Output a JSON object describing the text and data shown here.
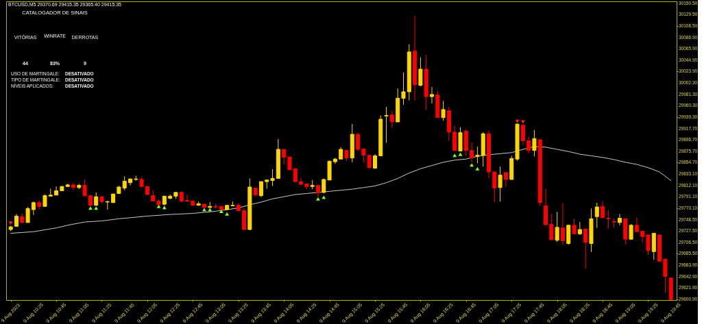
{
  "chart_data": {
    "type": "candlestick",
    "title": "BTCUSD,M5 29370.69 29415.35 29365.40 29415.35",
    "annotations": [
      "CATALOGADOR DE SINAIS",
      "VITÓRIAS",
      "WINRATE",
      "DERROTAS",
      "44",
      "83%",
      "9",
      "USO DE MARTINGALE:",
      "DESATIVADO",
      "TIPO DE MARTINGALE:",
      "DESATIVADO",
      "NÍVEIS APLICADOS:",
      "DESATIVADO"
    ],
    "x": [
      "2023-08-09T10:05",
      "2023-08-09T10:10",
      "2023-08-09T10:15",
      "2023-08-09T10:20",
      "2023-08-09T10:25",
      "2023-08-09T10:30",
      "2023-08-09T10:35",
      "2023-08-09T10:40",
      "2023-08-09T10:45",
      "2023-08-09T10:50",
      "2023-08-09T10:55",
      "2023-08-09T11:00",
      "2023-08-09T11:05",
      "2023-08-09T11:10",
      "2023-08-09T11:15",
      "2023-08-09T11:20",
      "2023-08-09T11:25",
      "2023-08-09T11:30",
      "2023-08-09T11:35",
      "2023-08-09T11:40",
      "2023-08-09T11:45",
      "2023-08-09T11:50",
      "2023-08-09T11:55",
      "2023-08-09T12:00",
      "2023-08-09T12:05",
      "2023-08-09T12:10",
      "2023-08-09T12:15",
      "2023-08-09T12:20",
      "2023-08-09T12:25",
      "2023-08-09T12:30",
      "2023-08-09T12:35",
      "2023-08-09T12:40",
      "2023-08-09T12:45",
      "2023-08-09T12:50",
      "2023-08-09T12:55",
      "2023-08-09T13:00",
      "2023-08-09T13:05",
      "2023-08-09T13:10",
      "2023-08-09T13:15",
      "2023-08-09T13:20",
      "2023-08-09T13:25",
      "2023-08-09T13:30",
      "2023-08-09T13:35",
      "2023-08-09T13:40",
      "2023-08-09T13:45",
      "2023-08-09T13:50",
      "2023-08-09T13:55",
      "2023-08-09T14:00",
      "2023-08-09T14:05",
      "2023-08-09T14:10",
      "2023-08-09T14:15",
      "2023-08-09T14:20",
      "2023-08-09T14:25",
      "2023-08-09T14:30",
      "2023-08-09T14:35",
      "2023-08-09T14:40",
      "2023-08-09T14:45",
      "2023-08-09T14:50",
      "2023-08-09T14:55",
      "2023-08-09T15:00",
      "2023-08-09T15:05",
      "2023-08-09T15:10",
      "2023-08-09T15:15",
      "2023-08-09T15:20",
      "2023-08-09T15:25",
      "2023-08-09T15:30",
      "2023-08-09T15:35",
      "2023-08-09T15:40",
      "2023-08-09T15:45",
      "2023-08-09T15:50",
      "2023-08-09T15:55",
      "2023-08-09T16:00",
      "2023-08-09T16:05",
      "2023-08-09T16:10",
      "2023-08-09T16:15",
      "2023-08-09T16:20",
      "2023-08-09T16:25",
      "2023-08-09T16:30",
      "2023-08-09T16:35",
      "2023-08-09T16:40",
      "2023-08-09T16:45",
      "2023-08-09T16:50",
      "2023-08-09T16:55",
      "2023-08-09T17:00",
      "2023-08-09T17:05",
      "2023-08-09T17:10",
      "2023-08-09T17:15",
      "2023-08-09T17:20",
      "2023-08-09T17:25",
      "2023-08-09T17:30",
      "2023-08-09T17:35",
      "2023-08-09T17:40",
      "2023-08-09T17:45",
      "2023-08-09T17:50",
      "2023-08-09T17:55",
      "2023-08-09T18:00",
      "2023-08-09T18:05",
      "2023-08-09T18:10",
      "2023-08-09T18:15",
      "2023-08-09T18:20",
      "2023-08-09T18:25",
      "2023-08-09T18:30",
      "2023-08-09T18:35",
      "2023-08-09T18:40",
      "2023-08-09T18:45",
      "2023-08-09T18:50",
      "2023-08-09T18:55",
      "2023-08-09T19:00",
      "2023-08-09T19:05",
      "2023-08-09T19:10",
      "2023-08-09T19:15",
      "2023-08-09T19:20",
      "2023-08-09T19:25",
      "2023-08-09T19:30",
      "2023-08-09T19:35",
      "2023-08-09T19:40",
      "2023-08-09T19:45"
    ],
    "ohlc": [
      [
        29730,
        29737,
        29727,
        29735
      ],
      [
        29736,
        29759,
        29735,
        29755
      ],
      [
        29754,
        29760,
        29743,
        29743
      ],
      [
        29743,
        29772,
        29743,
        29769
      ],
      [
        29767,
        29782,
        29757,
        29780
      ],
      [
        29780,
        29784,
        29767,
        29773
      ],
      [
        29773,
        29795,
        29773,
        29793
      ],
      [
        29792,
        29806,
        29792,
        29794
      ],
      [
        29794,
        29810,
        29794,
        29802
      ],
      [
        29802,
        29811,
        29802,
        29810
      ],
      [
        29810,
        29815,
        29809,
        29813
      ],
      [
        29813,
        29817,
        29803,
        29808
      ],
      [
        29808,
        29815,
        29805,
        29812
      ],
      [
        29812,
        29823,
        29791,
        29793
      ],
      [
        29793,
        29793,
        29773,
        29775
      ],
      [
        29775,
        29799,
        29774,
        29791
      ],
      [
        29791,
        29791,
        29778,
        29782
      ],
      [
        29781,
        29783,
        29767,
        29782
      ],
      [
        29780,
        29797,
        29780,
        29796
      ],
      [
        29797,
        29811,
        29796,
        29809
      ],
      [
        29807,
        29829,
        29803,
        29820
      ],
      [
        29817,
        29825,
        29812,
        29824
      ],
      [
        29823,
        29830,
        29821,
        29824
      ],
      [
        29823,
        29827,
        29810,
        29810
      ],
      [
        29810,
        29811,
        29795,
        29795
      ],
      [
        29793,
        29803,
        29783,
        29783
      ],
      [
        29783,
        29786,
        29776,
        29776
      ],
      [
        29777,
        29793,
        29775,
        29792
      ],
      [
        29788,
        29795,
        29786,
        29792
      ],
      [
        29792,
        29800,
        29787,
        29799
      ],
      [
        29799,
        29801,
        29780,
        29783
      ],
      [
        29784,
        29795,
        29781,
        29783
      ],
      [
        29783,
        29783,
        29775,
        29775
      ],
      [
        29775,
        29782,
        29775,
        29778
      ],
      [
        29777,
        29778,
        29770,
        29771
      ],
      [
        29771,
        29781,
        29770,
        29773
      ],
      [
        29773,
        29777,
        29769,
        29772
      ],
      [
        29773,
        29774,
        29767,
        29767
      ],
      [
        29767,
        29776,
        29766,
        29775
      ],
      [
        29774,
        29782,
        29773,
        29775
      ],
      [
        29775,
        29779,
        29765,
        29765
      ],
      [
        29765,
        29770,
        29730,
        29730
      ],
      [
        29730,
        29825,
        29729,
        29809
      ],
      [
        29807,
        29807,
        29794,
        29794
      ],
      [
        29793,
        29820,
        29790,
        29819
      ],
      [
        29819,
        29823,
        29806,
        29822
      ],
      [
        29821,
        29842,
        29811,
        29825
      ],
      [
        29825,
        29898,
        29825,
        29879
      ],
      [
        29879,
        29879,
        29851,
        29864
      ],
      [
        29865,
        29865,
        29841,
        29841
      ],
      [
        29843,
        29843,
        29819,
        29819
      ],
      [
        29819,
        29826,
        29813,
        29814
      ],
      [
        29815,
        29815,
        29805,
        29810
      ],
      [
        29810,
        29822,
        29805,
        29812
      ],
      [
        29812,
        29812,
        29791,
        29798
      ],
      [
        29799,
        29825,
        29797,
        29823
      ],
      [
        29822,
        29858,
        29822,
        29857
      ],
      [
        29856,
        29863,
        29852,
        29861
      ],
      [
        29861,
        29883,
        29861,
        29879
      ],
      [
        29877,
        29877,
        29858,
        29863
      ],
      [
        29863,
        29926,
        29855,
        29907
      ],
      [
        29907,
        29910,
        29875,
        29879
      ],
      [
        29880,
        29880,
        29855,
        29868
      ],
      [
        29868,
        29868,
        29844,
        29845
      ],
      [
        29844,
        29870,
        29843,
        29867
      ],
      [
        29867,
        29942,
        29867,
        29935
      ],
      [
        29941,
        29958,
        29891,
        29942
      ],
      [
        29943,
        29950,
        29919,
        29930
      ],
      [
        29930,
        29992,
        29930,
        29974
      ],
      [
        29974,
        30022,
        29962,
        29986
      ],
      [
        29986,
        30074,
        29970,
        30060
      ],
      [
        30062,
        30127,
        29970,
        29999
      ],
      [
        29998,
        30050,
        29996,
        30028
      ],
      [
        30028,
        30054,
        29952,
        29977
      ],
      [
        29977,
        29995,
        29964,
        29981
      ],
      [
        29980,
        29988,
        29938,
        29938
      ],
      [
        29938,
        29969,
        29932,
        29953
      ],
      [
        29951,
        29958,
        29895,
        29911
      ],
      [
        29911,
        29923,
        29877,
        29877
      ],
      [
        29876,
        29920,
        29875,
        29910
      ],
      [
        29913,
        29916,
        29867,
        29877
      ],
      [
        29877,
        29892,
        29855,
        29863
      ],
      [
        29866,
        29884,
        29853,
        29868
      ],
      [
        29868,
        29911,
        29847,
        29908
      ],
      [
        29908,
        29914,
        29825,
        29837
      ],
      [
        29837,
        29837,
        29781,
        29807
      ],
      [
        29808,
        29847,
        29782,
        29831
      ],
      [
        29836,
        29836,
        29809,
        29823
      ],
      [
        29823,
        29867,
        29823,
        29862
      ],
      [
        29861,
        29927,
        29858,
        29926
      ],
      [
        29924,
        29926,
        29887,
        29895
      ],
      [
        29895,
        29903,
        29872,
        29877
      ],
      [
        29877,
        29915,
        29866,
        29899
      ],
      [
        29897,
        29897,
        29774,
        29780
      ],
      [
        29774,
        29805,
        29738,
        29739
      ],
      [
        29740,
        29759,
        29711,
        29711
      ],
      [
        29710,
        29763,
        29707,
        29734
      ],
      [
        29733,
        29779,
        29702,
        29709
      ],
      [
        29704,
        29739,
        29702,
        29738
      ],
      [
        29738,
        29750,
        29722,
        29722
      ],
      [
        29722,
        29744,
        29720,
        29730
      ],
      [
        29731,
        29731,
        29657,
        29706
      ],
      [
        29704,
        29769,
        29688,
        29750
      ],
      [
        29754,
        29780,
        29733,
        29772
      ],
      [
        29773,
        29783,
        29751,
        29752
      ],
      [
        29751,
        29766,
        29732,
        29750
      ],
      [
        29745,
        29750,
        29734,
        29744
      ],
      [
        29743,
        29759,
        29738,
        29751
      ],
      [
        29750,
        29750,
        29702,
        29712
      ],
      [
        29712,
        29740,
        29712,
        29738
      ],
      [
        29738,
        29752,
        29726,
        29726
      ],
      [
        29727,
        29727,
        29706,
        29717
      ],
      [
        29720,
        29720,
        29683,
        29691
      ],
      [
        29689,
        29724,
        29674,
        29723
      ],
      [
        29720,
        29720,
        29671,
        29671
      ],
      [
        29675,
        29675,
        29612,
        29643
      ],
      [
        29640,
        29640,
        29600,
        29600
      ]
    ],
    "colors": [
      "#ffd700",
      "#ffd700",
      "#ff0000",
      "#ffd700",
      "#ffd700",
      "#ff0000",
      "#ffd700",
      "#ffd700",
      "#ffd700",
      "#ffd700",
      "#ffd700",
      "#ff0000",
      "#ffd700",
      "#ff0000",
      "#ff0000",
      "#ffd700",
      "#ff0000",
      "#ffd700",
      "#ffd700",
      "#ffd700",
      "#ffd700",
      "#ffd700",
      "#ffd700",
      "#ff0000",
      "#ff0000",
      "#ff0000",
      "#ff0000",
      "#ffd700",
      "#ffd700",
      "#ffd700",
      "#ff0000",
      "#ff0000",
      "#ff0000",
      "#ffd700",
      "#ff0000",
      "#ffd700",
      "#ff0000",
      "#ff0000",
      "#ffd700",
      "#ffd700",
      "#ff0000",
      "#ff0000",
      "#ffd700",
      "#ff0000",
      "#ffd700",
      "#ffd700",
      "#ffd700",
      "#ffd700",
      "#ff0000",
      "#ff0000",
      "#ff0000",
      "#ff0000",
      "#ff0000",
      "#ffd700",
      "#ff0000",
      "#ffd700",
      "#ffd700",
      "#ffd700",
      "#ffd700",
      "#ff0000",
      "#ffd700",
      "#ff0000",
      "#ff0000",
      "#ff0000",
      "#ffd700",
      "#ffd700",
      "#ffd700",
      "#ff0000",
      "#ffd700",
      "#ffd700",
      "#ffd700",
      "#ff0000",
      "#ffd700",
      "#ff0000",
      "#ffd700",
      "#ff0000",
      "#ffd700",
      "#ff0000",
      "#ff0000",
      "#ffd700",
      "#ff0000",
      "#ff0000",
      "#ffd700",
      "#ffd700",
      "#ff0000",
      "#ff0000",
      "#ffd700",
      "#ff0000",
      "#ffd700",
      "#ffd700",
      "#ff0000",
      "#ff0000",
      "#ffd700",
      "#ff0000",
      "#ff0000",
      "#ff0000",
      "#ffd700",
      "#ff0000",
      "#ffd700",
      "#ff0000",
      "#ffd700",
      "#ff0000",
      "#ffd700",
      "#ffd700",
      "#ff0000",
      "#ff0000",
      "#ff0000",
      "#ffd700",
      "#ff0000",
      "#ffd700",
      "#ff0000",
      "#ff0000",
      "#ff0000",
      "#ffd700",
      "#ff0000",
      "#ff0000",
      "#ff0000"
    ],
    "series": [
      {
        "type": "line",
        "color": "#c8c8c8",
        "x": [
          "2023-08-09T10:05",
          "2023-08-09T10:25",
          "2023-08-09T10:45",
          "2023-08-09T10:55",
          "2023-08-09T11:10",
          "2023-08-09T11:25",
          "2023-08-09T11:40",
          "2023-08-09T12:05",
          "2023-08-09T12:25",
          "2023-08-09T12:45",
          "2023-08-09T13:05",
          "2023-08-09T13:25",
          "2023-08-09T13:35",
          "2023-08-09T13:45",
          "2023-08-09T13:55",
          "2023-08-09T14:05",
          "2023-08-09T14:15",
          "2023-08-09T14:25",
          "2023-08-09T14:35",
          "2023-08-09T14:45",
          "2023-08-09T14:55",
          "2023-08-09T15:05",
          "2023-08-09T15:15",
          "2023-08-09T15:25",
          "2023-08-09T15:35",
          "2023-08-09T15:45",
          "2023-08-09T15:55",
          "2023-08-09T16:05",
          "2023-08-09T16:15",
          "2023-08-09T16:25",
          "2023-08-09T16:35",
          "2023-08-09T16:45",
          "2023-08-09T16:55",
          "2023-08-09T17:05",
          "2023-08-09T17:15",
          "2023-08-09T17:25",
          "2023-08-09T17:35",
          "2023-08-09T17:45",
          "2023-08-09T17:55",
          "2023-08-09T18:05",
          "2023-08-09T18:15",
          "2023-08-09T18:25",
          "2023-08-09T18:35",
          "2023-08-09T18:45",
          "2023-08-09T18:55",
          "2023-08-09T19:05",
          "2023-08-09T19:15",
          "2023-08-09T19:25",
          "2023-08-09T19:35",
          "2023-08-09T19:45"
        ],
        "values": [
          29723,
          29726,
          29733,
          29738,
          29744,
          29746,
          29750,
          29755,
          29758,
          29760,
          29764,
          29770,
          29776,
          29781,
          29787,
          29791,
          29795,
          29797,
          29799,
          29801,
          29803,
          29805,
          29808,
          29811,
          29817,
          29825,
          29835,
          29843,
          29849,
          29855,
          29859,
          29861,
          29866,
          29869,
          29871,
          29873,
          29879,
          29884,
          29883,
          29879,
          29875,
          29870,
          29867,
          29864,
          29860,
          29855,
          29851,
          29845,
          29837,
          29821
        ]
      },
      {
        "type": "scatter",
        "color": "#80ff20",
        "marker": "triangle",
        "x": [
          "2023-08-09T11:15",
          "2023-08-09T11:20",
          "2023-08-09T12:15",
          "2023-08-09T12:20",
          "2023-08-09T12:55",
          "2023-08-09T13:00",
          "2023-08-09T13:10",
          "2023-08-09T13:15",
          "2023-08-09T14:35",
          "2023-08-09T14:40",
          "2023-08-09T16:35",
          "2023-08-09T16:40",
          "2023-08-09T16:50",
          "2023-08-09T16:55"
        ],
        "values": [
          29770,
          29770,
          29773,
          29771,
          29767,
          29767,
          29764,
          29759,
          29787,
          29790,
          29868,
          29870,
          29850,
          29843
        ]
      },
      {
        "type": "scatter",
        "color": "#ff2020",
        "marker": "triangle",
        "x": [
          "2023-08-09T10:05",
          "2023-08-09T17:30",
          "2023-08-09T17:35"
        ],
        "values": [
          29742,
          29931,
          29930
        ]
      }
    ],
    "xlim": [
      "2023-08-09T10:04",
      "2023-08-09T19:47"
    ],
    "xticks": [
      {
        "value": "2023-08-09T10:05",
        "label": "9 Aug 2023"
      },
      {
        "value": "2023-08-09T10:25",
        "label": "9 Aug 10:25"
      },
      {
        "value": "2023-08-09T10:45",
        "label": "9 Aug 10:45"
      },
      {
        "value": "2023-08-09T11:05",
        "label": "9 Aug 11:05"
      },
      {
        "value": "2023-08-09T11:25",
        "label": "9 Aug 11:25"
      },
      {
        "value": "2023-08-09T11:45",
        "label": "9 Aug 11:45"
      },
      {
        "value": "2023-08-09T12:05",
        "label": "9 Aug 12:05"
      },
      {
        "value": "2023-08-09T12:25",
        "label": "9 Aug 12:25"
      },
      {
        "value": "2023-08-09T12:45",
        "label": "9 Aug 12:45"
      },
      {
        "value": "2023-08-09T13:05",
        "label": "9 Aug 13:05"
      },
      {
        "value": "2023-08-09T13:25",
        "label": "9 Aug 13:25"
      },
      {
        "value": "2023-08-09T13:45",
        "label": "9 Aug 13:45"
      },
      {
        "value": "2023-08-09T14:05",
        "label": "9 Aug 14:05"
      },
      {
        "value": "2023-08-09T14:25",
        "label": "9 Aug 14:25"
      },
      {
        "value": "2023-08-09T14:45",
        "label": "9 Aug 14:45"
      },
      {
        "value": "2023-08-09T15:05",
        "label": "9 Aug 15:05"
      },
      {
        "value": "2023-08-09T15:25",
        "label": "9 Aug 15:25"
      },
      {
        "value": "2023-08-09T15:45",
        "label": "9 Aug 15:45"
      },
      {
        "value": "2023-08-09T16:05",
        "label": "9 Aug 16:05"
      },
      {
        "value": "2023-08-09T16:25",
        "label": "9 Aug 16:25"
      },
      {
        "value": "2023-08-09T16:45",
        "label": "9 Aug 16:45"
      },
      {
        "value": "2023-08-09T17:05",
        "label": "9 Aug 17:05"
      },
      {
        "value": "2023-08-09T17:25",
        "label": "9 Aug 17:25"
      },
      {
        "value": "2023-08-09T17:45",
        "label": "9 Aug 17:45"
      },
      {
        "value": "2023-08-09T18:05",
        "label": "9 Aug 18:05"
      },
      {
        "value": "2023-08-09T18:25",
        "label": "9 Aug 18:25"
      },
      {
        "value": "2023-08-09T18:45",
        "label": "9 Aug 18:45"
      },
      {
        "value": "2023-08-09T19:05",
        "label": "9 Aug 19:05"
      },
      {
        "value": "2023-08-09T19:25",
        "label": "9 Aug 19:25"
      },
      {
        "value": "2023-08-09T19:45",
        "label": "9 Aug 19:45"
      }
    ],
    "ylim": [
      29599,
      30154
    ],
    "yticks": [
      {
        "value": 30150.5,
        "label": "30150.50"
      },
      {
        "value": 30129.5,
        "label": "30129.50"
      },
      {
        "value": 30108.5,
        "label": "30108.50"
      },
      {
        "value": 30086.9,
        "label": "30086.90"
      },
      {
        "value": 30065.9,
        "label": "30065.90"
      },
      {
        "value": 30044.9,
        "label": "30044.90"
      },
      {
        "value": 30023.9,
        "label": "30023.90"
      },
      {
        "value": 30002.3,
        "label": "30002.30"
      },
      {
        "value": 29981.3,
        "label": "29981.30"
      },
      {
        "value": 29960.3,
        "label": "29960.30"
      },
      {
        "value": 29939.3,
        "label": "29939.30"
      },
      {
        "value": 29917.7,
        "label": "29917.70"
      },
      {
        "value": 29896.7,
        "label": "29896.70"
      },
      {
        "value": 29875.7,
        "label": "29875.70"
      },
      {
        "value": 29854.7,
        "label": "29854.70"
      },
      {
        "value": 29833.1,
        "label": "29833.10"
      },
      {
        "value": 29812.1,
        "label": "29812.10"
      },
      {
        "value": 29791.1,
        "label": "29791.10"
      },
      {
        "value": 29770.1,
        "label": "29770.10"
      },
      {
        "value": 29748.5,
        "label": "29748.50"
      },
      {
        "value": 29727.5,
        "label": "29727.50"
      },
      {
        "value": 29706.5,
        "label": "29706.50"
      },
      {
        "value": 29685.5,
        "label": "29685.50"
      },
      {
        "value": 29663.9,
        "label": "29663.90"
      },
      {
        "value": 29642.9,
        "label": "29642.90"
      },
      {
        "value": 29621.9,
        "label": "29621.90"
      },
      {
        "value": 29600.9,
        "label": "29600.90"
      }
    ]
  }
}
